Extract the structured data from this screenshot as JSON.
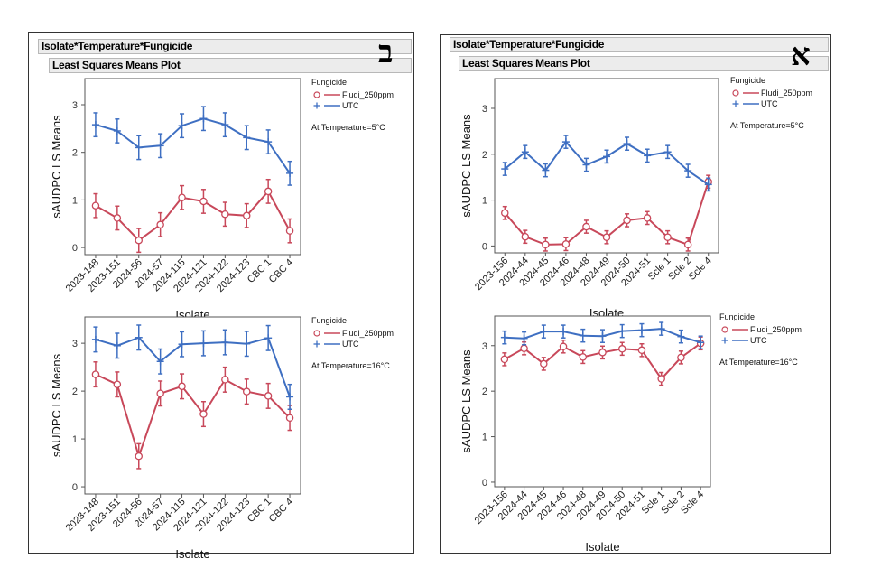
{
  "panels": [
    {
      "id": "b",
      "letter": "ב",
      "title": "Isolate*Temperature*Fungicide",
      "subtitle": "Least Squares Means Plot"
    },
    {
      "id": "a",
      "letter": "א",
      "title": "Isolate*Temperature*Fungicide",
      "subtitle": "Least Squares Means Plot"
    }
  ],
  "colors": {
    "fludi": "#c8485a",
    "utc": "#3e6fc2",
    "axis": "#555555"
  },
  "chart_data": [
    {
      "id": "b-5",
      "type": "line",
      "xlabel": "Isolate",
      "ylabel": "sAUDPC LS Means",
      "ylim": [
        -0.15,
        3.55
      ],
      "yticks": [
        0,
        1,
        2,
        3
      ],
      "categories": [
        "2023-148",
        "2023-151",
        "2024-56",
        "2024-57",
        "2024-115",
        "2024-121",
        "2024-122",
        "2024-123",
        "CBC 1",
        "CBC 4"
      ],
      "legend_title": "Fungicide",
      "annotation": "At Temperature=5°C",
      "series": [
        {
          "name": "Fludi_250ppm",
          "marker": "circle",
          "values": [
            0.88,
            0.62,
            0.15,
            0.48,
            1.05,
            0.97,
            0.7,
            0.67,
            1.18,
            0.35
          ],
          "errors": [
            0.25,
            0.25,
            0.25,
            0.25,
            0.25,
            0.25,
            0.25,
            0.25,
            0.25,
            0.25
          ]
        },
        {
          "name": "UTC",
          "marker": "plus",
          "values": [
            2.58,
            2.45,
            2.1,
            2.14,
            2.56,
            2.71,
            2.58,
            2.31,
            2.22,
            1.56
          ],
          "errors": [
            0.25,
            0.25,
            0.25,
            0.25,
            0.25,
            0.25,
            0.25,
            0.25,
            0.25,
            0.25
          ]
        }
      ]
    },
    {
      "id": "b-16",
      "type": "line",
      "xlabel": "Isolate",
      "ylabel": "sAUDPC LS Means",
      "ylim": [
        -0.15,
        3.55
      ],
      "yticks": [
        0,
        1,
        2,
        3
      ],
      "categories": [
        "2023-148",
        "2023-151",
        "2024-56",
        "2024-57",
        "2024-115",
        "2024-121",
        "2024-122",
        "2024-123",
        "CBC 1",
        "CBC 4"
      ],
      "legend_title": "Fungicide",
      "annotation": "At Temperature=16°C",
      "series": [
        {
          "name": "Fludi_250ppm",
          "marker": "circle",
          "values": [
            2.35,
            2.14,
            0.64,
            1.95,
            2.1,
            1.52,
            2.24,
            1.99,
            1.9,
            1.44
          ],
          "errors": [
            0.26,
            0.26,
            0.26,
            0.26,
            0.26,
            0.26,
            0.26,
            0.26,
            0.26,
            0.26
          ]
        },
        {
          "name": "UTC",
          "marker": "plus",
          "values": [
            3.08,
            2.95,
            3.12,
            2.62,
            2.98,
            3.0,
            3.02,
            2.99,
            3.11,
            1.88
          ],
          "errors": [
            0.26,
            0.26,
            0.26,
            0.26,
            0.26,
            0.26,
            0.26,
            0.26,
            0.26,
            0.26
          ]
        }
      ]
    },
    {
      "id": "a-5",
      "type": "line",
      "xlabel": "Isolate",
      "ylabel": "sAUDPC LS Means",
      "ylim": [
        -0.15,
        3.65
      ],
      "yticks": [
        0,
        1,
        2,
        3
      ],
      "categories": [
        "2023-156",
        "2024-44",
        "2024-45",
        "2024-46",
        "2024-48",
        "2024-49",
        "2024-50",
        "2024-51",
        "Scle 1",
        "Scle 2",
        "Scle 4"
      ],
      "legend_title": "Fungicide",
      "annotation": "At Temperature=5°C",
      "series": [
        {
          "name": "Fludi_250ppm",
          "marker": "circle",
          "values": [
            0.72,
            0.2,
            0.03,
            0.04,
            0.42,
            0.19,
            0.56,
            0.61,
            0.19,
            0.03,
            1.4
          ],
          "errors": [
            0.14,
            0.14,
            0.14,
            0.14,
            0.14,
            0.14,
            0.14,
            0.14,
            0.14,
            0.14,
            0.14
          ]
        },
        {
          "name": "UTC",
          "marker": "plus",
          "values": [
            1.68,
            2.05,
            1.65,
            2.27,
            1.77,
            1.95,
            2.23,
            1.97,
            2.05,
            1.64,
            1.34
          ],
          "errors": [
            0.14,
            0.14,
            0.14,
            0.14,
            0.14,
            0.14,
            0.14,
            0.14,
            0.14,
            0.14,
            0.14
          ]
        }
      ]
    },
    {
      "id": "a-16",
      "type": "line",
      "xlabel": "Isolate",
      "ylabel": "sAUDPC LS Means",
      "ylim": [
        -0.1,
        3.65
      ],
      "yticks": [
        0,
        1,
        2,
        3
      ],
      "categories": [
        "2023-156",
        "2024-44",
        "2024-45",
        "2024-46",
        "2024-48",
        "2024-49",
        "2024-50",
        "2024-51",
        "Scle 1",
        "Scle 2",
        "Scle 4"
      ],
      "legend_title": "Fungicide",
      "annotation": "At Temperature=16°C",
      "series": [
        {
          "name": "Fludi_250ppm",
          "marker": "circle",
          "values": [
            2.7,
            2.94,
            2.6,
            2.98,
            2.75,
            2.85,
            2.93,
            2.9,
            2.27,
            2.74,
            3.05
          ],
          "errors": [
            0.14,
            0.14,
            0.14,
            0.14,
            0.14,
            0.14,
            0.14,
            0.14,
            0.14,
            0.14,
            0.14
          ]
        },
        {
          "name": "UTC",
          "marker": "plus",
          "values": [
            3.18,
            3.16,
            3.31,
            3.31,
            3.22,
            3.21,
            3.32,
            3.34,
            3.37,
            3.2,
            3.07
          ],
          "errors": [
            0.14,
            0.14,
            0.14,
            0.14,
            0.14,
            0.14,
            0.14,
            0.14,
            0.14,
            0.14,
            0.14
          ]
        }
      ]
    }
  ]
}
